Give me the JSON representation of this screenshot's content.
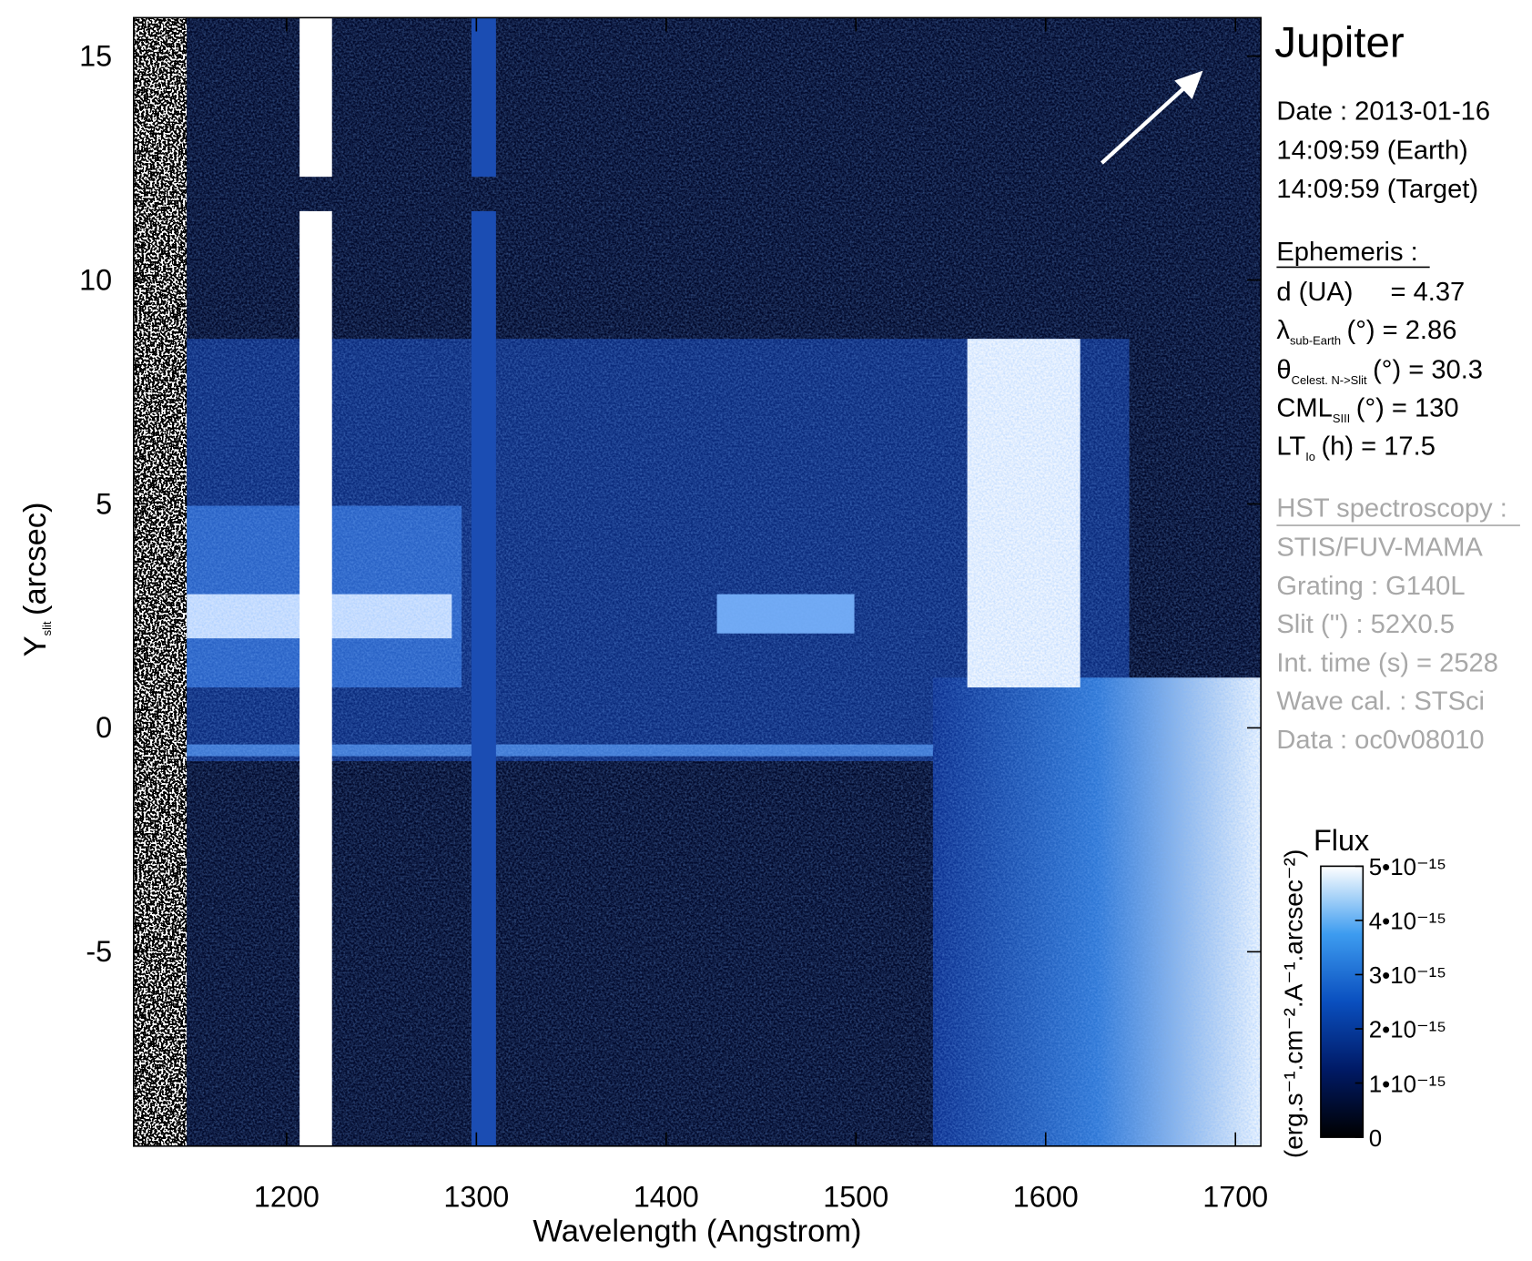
{
  "chart_data": {
    "type": "spectral-image",
    "xlabel": "Wavelength (Angstrom)",
    "ylabel": {
      "main": "Y",
      "sub": "slit",
      "rest": "(arcsec)"
    },
    "xlim": [
      1119.4,
      1713.4
    ],
    "xticks": [
      1200,
      1300,
      1400,
      1500,
      1600,
      1700
    ],
    "ylim": [
      -9.34,
      15.86
    ],
    "yticks": [
      -5,
      0,
      5,
      10,
      15
    ],
    "colorbar": {
      "title": "Flux",
      "label": "(erg.s⁻¹.cm⁻².A⁻¹.arcsec⁻²)",
      "lim": [
        0,
        5e-15
      ],
      "ticks": [
        {
          "value": 0,
          "label": "0"
        },
        {
          "value": 1e-15,
          "label": "1•10⁻¹⁵"
        },
        {
          "value": 2e-15,
          "label": "2•10⁻¹⁵"
        },
        {
          "value": 3e-15,
          "label": "3•10⁻¹⁵"
        },
        {
          "value": 4e-15,
          "label": "4•10⁻¹⁵"
        },
        {
          "value": 5e-15,
          "label": "5•10⁻¹⁵"
        }
      ]
    }
  },
  "info": {
    "target": "Jupiter",
    "date": "Date : 2013-01-16",
    "time_earth": "14:09:59 (Earth)",
    "time_target": "14:09:59 (Target)",
    "ephemeris": {
      "title": "Ephemeris :",
      "rows": [
        {
          "label": "d (UA)",
          "rest": "= 4.37"
        },
        {
          "label": "λ",
          "sub": "sub-Earth",
          "rest": "(°) = 2.86"
        },
        {
          "label": "θ",
          "sub": "Celest. N->Slit",
          "rest": "(°) = 30.3"
        },
        {
          "label": "CML",
          "sub": "SIII",
          "rest": "(°) = 130"
        },
        {
          "label": "LT",
          "sub": "Io",
          "rest": "(h) = 17.5"
        }
      ]
    },
    "observation": {
      "title": "HST spectroscopy :",
      "rows": [
        "STIS/FUV-MAMA",
        "Grating : G140L",
        "Slit ('') : 52X0.5",
        "Int. time (s) = 2528",
        "Wave cal. : STSci",
        "Data : oc0v08010"
      ]
    }
  }
}
